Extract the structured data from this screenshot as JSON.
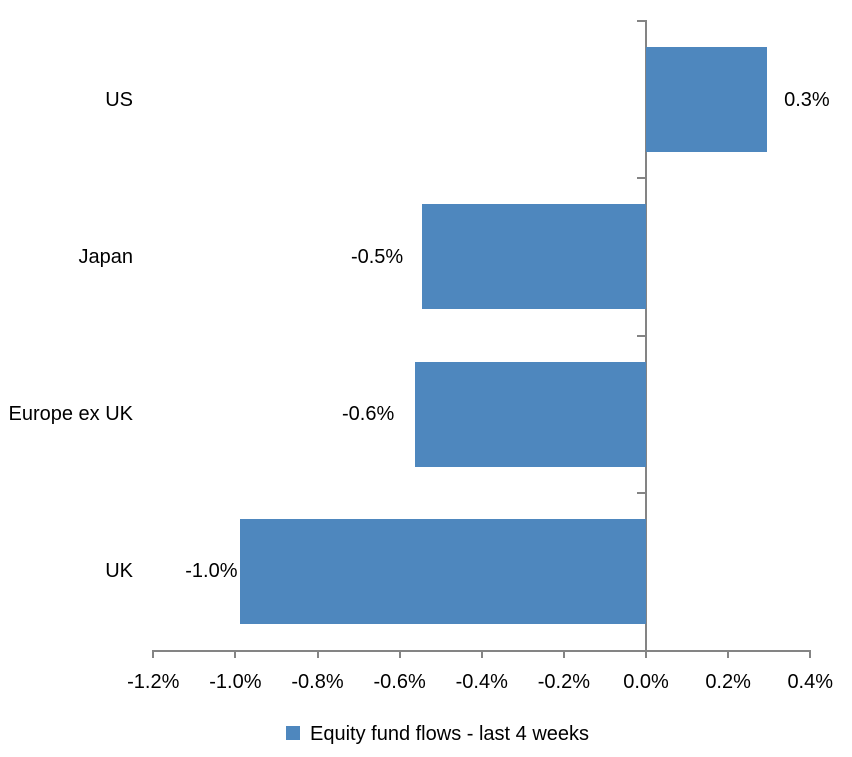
{
  "chart_data": {
    "type": "bar",
    "orientation": "horizontal",
    "categories": [
      "US",
      "Japan",
      "Europe ex UK",
      "UK"
    ],
    "series": [
      {
        "name": "Equity fund flows - last 4 weeks",
        "values": [
          0.3,
          -0.5,
          -0.6,
          -1.0
        ],
        "value_labels": [
          "0.3%",
          "-0.5%",
          "-0.6%",
          "-1.0%"
        ],
        "visual_values": [
          0.295,
          -0.545,
          -0.562,
          -0.99
        ]
      }
    ],
    "xlim": [
      -1.2,
      0.4
    ],
    "x_tick_values": [
      -1.2,
      -1.0,
      -0.8,
      -0.6,
      -0.4,
      -0.2,
      0.0,
      0.2,
      0.4
    ],
    "x_tick_labels": [
      "-1.2%",
      "-1.0%",
      "-0.8%",
      "-0.6%",
      "-0.4%",
      "-0.2%",
      "0.0%",
      "0.2%",
      "0.4%"
    ],
    "grid": false,
    "value_axis_position": "zero",
    "legend": {
      "position": "bottom",
      "label": "Equity fund flows - last 4 weeks"
    },
    "colors": {
      "bar": "#4E87BE",
      "axis": "#848484",
      "text": "#000000",
      "background": "#FFFFFF"
    }
  }
}
